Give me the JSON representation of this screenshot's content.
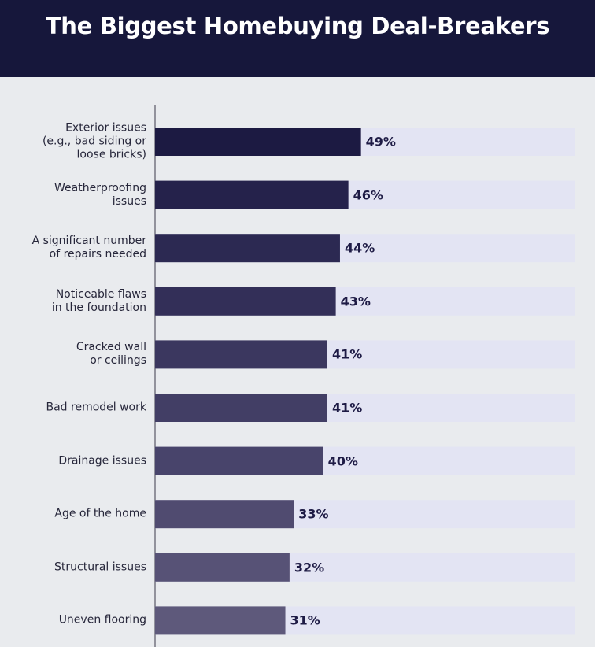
{
  "chart_data": {
    "type": "bar",
    "orientation": "horizontal",
    "title": "The Biggest Homebuying Deal-Breakers",
    "categories": [
      "Exterior issues\n(e.g., bad siding or\nloose bricks)",
      "Weatherproofing\nissues",
      "A significant number\nof repairs needed",
      "Noticeable flaws\nin the foundation",
      "Cracked wall\nor ceilings",
      "Bad remodel work",
      "Drainage issues",
      "Age of the home",
      "Structural issues",
      "Uneven flooring"
    ],
    "values": [
      49,
      46,
      44,
      43,
      41,
      41,
      40,
      33,
      32,
      31
    ],
    "value_labels": [
      "49%",
      "46%",
      "44%",
      "43%",
      "41%",
      "41%",
      "40%",
      "33%",
      "32%",
      "31%"
    ],
    "colors": [
      "#1c1a42",
      "#25224b",
      "#2c2952",
      "#332f58",
      "#3b375f",
      "#423e65",
      "#48446b",
      "#504b70",
      "#575276",
      "#5e597b"
    ],
    "track_color": "#e3e4f3",
    "xlim": [
      0,
      100
    ]
  }
}
